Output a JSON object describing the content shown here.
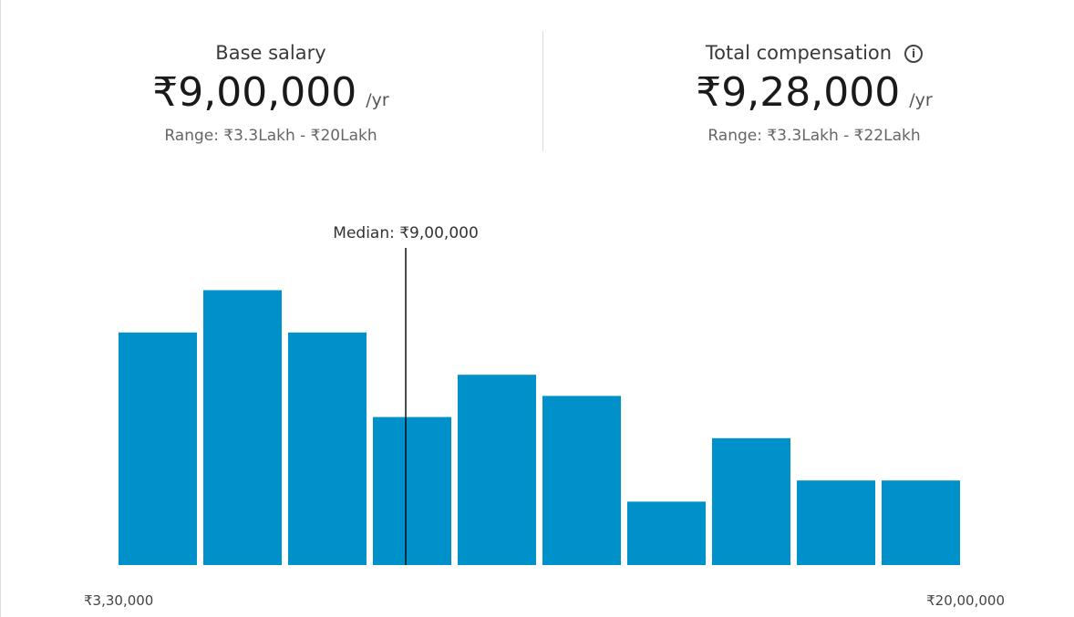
{
  "base_salary": {
    "title": "Base salary",
    "value": "₹9,00,000",
    "unit": "/yr",
    "range": "Range: ₹3.3Lakh - ₹20Lakh"
  },
  "total_compensation": {
    "title": "Total compensation",
    "value": "₹9,28,000",
    "unit": "/yr",
    "range": "Range: ₹3.3Lakh - ₹22Lakh",
    "info_icon": "info-icon"
  },
  "chart_data": {
    "type": "bar",
    "values": [
      11,
      13,
      11,
      7,
      9,
      8,
      3,
      6,
      4,
      4
    ],
    "xlim": [
      330000,
      2000000
    ],
    "x_tick_labels": [
      "₹3,30,000",
      "₹20,00,000"
    ],
    "median": 900000,
    "median_label": "Median: ₹9,00,000",
    "bar_color": "#0091ca",
    "grid": false
  }
}
